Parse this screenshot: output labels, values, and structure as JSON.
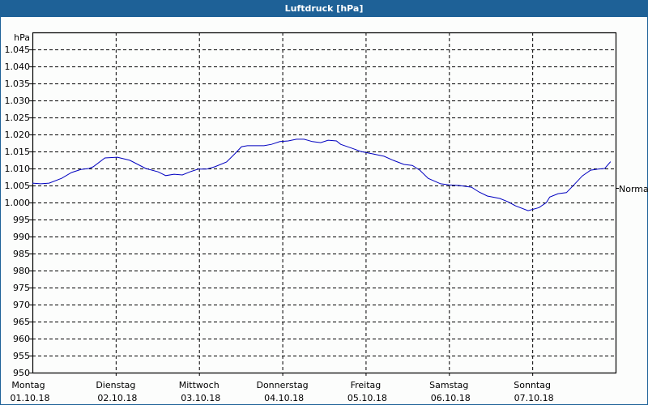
{
  "window": {
    "title": "Luftdruck [hPa]"
  },
  "colors": {
    "titlebar": "#1e6197",
    "line": "#0000c0",
    "grid": "#000000",
    "background": "#fcfdfc"
  },
  "chart_data": {
    "type": "line",
    "title": "Luftdruck [hPa]",
    "ylabel": "hPa",
    "xlabel": "",
    "ylim": [
      950,
      1050
    ],
    "y_ticks": [
      "950",
      "955",
      "960",
      "965",
      "970",
      "975",
      "980",
      "985",
      "990",
      "995",
      "1.000",
      "1.005",
      "1.010",
      "1.015",
      "1.020",
      "1.025",
      "1.030",
      "1.035",
      "1.040",
      "1.045"
    ],
    "x_ticks": [
      {
        "day": "Montag",
        "date": "01.10.18"
      },
      {
        "day": "Dienstag",
        "date": "02.10.18"
      },
      {
        "day": "Mittwoch",
        "date": "03.10.18"
      },
      {
        "day": "Donnerstag",
        "date": "04.10.18"
      },
      {
        "day": "Freitag",
        "date": "05.10.18"
      },
      {
        "day": "Samstag",
        "date": "06.10.18"
      },
      {
        "day": "Sonntag",
        "date": "07.10.18"
      }
    ],
    "annotations": [
      {
        "label": "Normal",
        "y": 1005
      }
    ],
    "grid": true,
    "series": [
      {
        "name": "Luftdruck",
        "x_days": [
          0,
          0.1,
          0.2,
          0.35,
          0.47,
          0.58,
          0.68,
          0.73,
          0.87,
          1.02,
          1.17,
          1.36,
          1.51,
          1.6,
          1.7,
          1.8,
          1.89,
          1.99,
          2.09,
          2.19,
          2.33,
          2.43,
          2.51,
          2.58,
          2.78,
          2.87,
          2.97,
          3.07,
          3.17,
          3.26,
          3.36,
          3.46,
          3.55,
          3.65,
          3.7,
          3.84,
          3.94,
          4.08,
          4.22,
          4.33,
          4.46,
          4.56,
          4.65,
          4.75,
          4.9,
          5.0,
          5.12,
          5.27,
          5.36,
          5.46,
          5.61,
          5.71,
          5.8,
          5.95,
          6.08,
          6.17,
          6.21,
          6.31,
          6.41,
          6.5,
          6.6,
          6.7,
          6.79,
          6.87,
          6.94
        ],
        "values": [
          1005.7,
          1005.5,
          1005.7,
          1007.1,
          1008.8,
          1009.7,
          1010.0,
          1010.5,
          1013.1,
          1013.3,
          1012.4,
          1010.0,
          1009.0,
          1007.9,
          1008.3,
          1008.1,
          1009.0,
          1009.8,
          1009.8,
          1010.5,
          1011.9,
          1014.3,
          1016.4,
          1016.7,
          1016.7,
          1017.1,
          1017.9,
          1018.1,
          1018.6,
          1018.6,
          1017.9,
          1017.6,
          1018.3,
          1018.1,
          1017.1,
          1015.9,
          1015.0,
          1014.3,
          1013.6,
          1012.4,
          1011.2,
          1010.9,
          1009.5,
          1007.1,
          1005.5,
          1005.2,
          1005.0,
          1004.5,
          1003.1,
          1001.9,
          1001.2,
          1000.2,
          999.0,
          997.6,
          998.5,
          1000.0,
          1001.6,
          1002.6,
          1002.9,
          1005.2,
          1007.8,
          1009.5,
          1009.8,
          1010.0,
          1012.0
        ]
      }
    ]
  }
}
